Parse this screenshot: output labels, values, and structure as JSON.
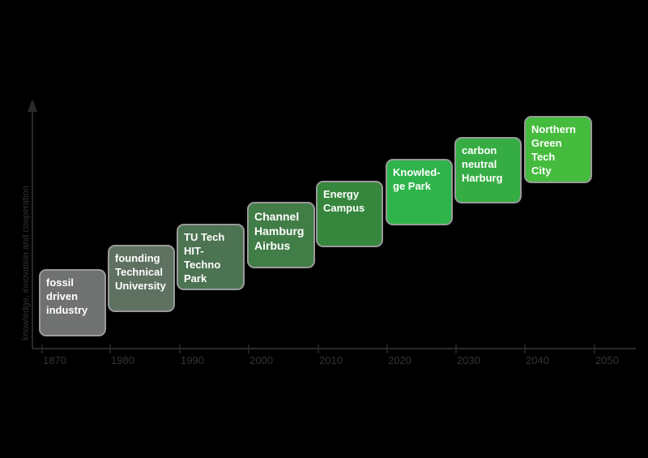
{
  "diagram": {
    "y_axis_label": "knowledge, innovation and cooperation",
    "ticks": [
      "1870",
      "1980",
      "1990",
      "2000",
      "2010",
      "2020",
      "2030",
      "2040",
      "2050"
    ],
    "stages": [
      {
        "label": "fossil\ndriven\nindustry",
        "color": "#6f7270"
      },
      {
        "label": "founding\nTechnical\nUniversity",
        "color": "#5f7262"
      },
      {
        "label": "TU Tech\nHIT-Techno\nPark",
        "color": "#4d7452"
      },
      {
        "label": "Channel\nHamburg\nAirbus",
        "color": "#417d47"
      },
      {
        "label": "Energy\nCampus",
        "color": "#36873d"
      },
      {
        "label": "Knowled-\nge  Park",
        "color": "#2eb44a"
      },
      {
        "label": "carbon\nneutral\nHarburg",
        "color": "#35ad44"
      },
      {
        "label": "Northern\nGreen Tech\nCity",
        "color": "#45bc3d"
      }
    ]
  }
}
